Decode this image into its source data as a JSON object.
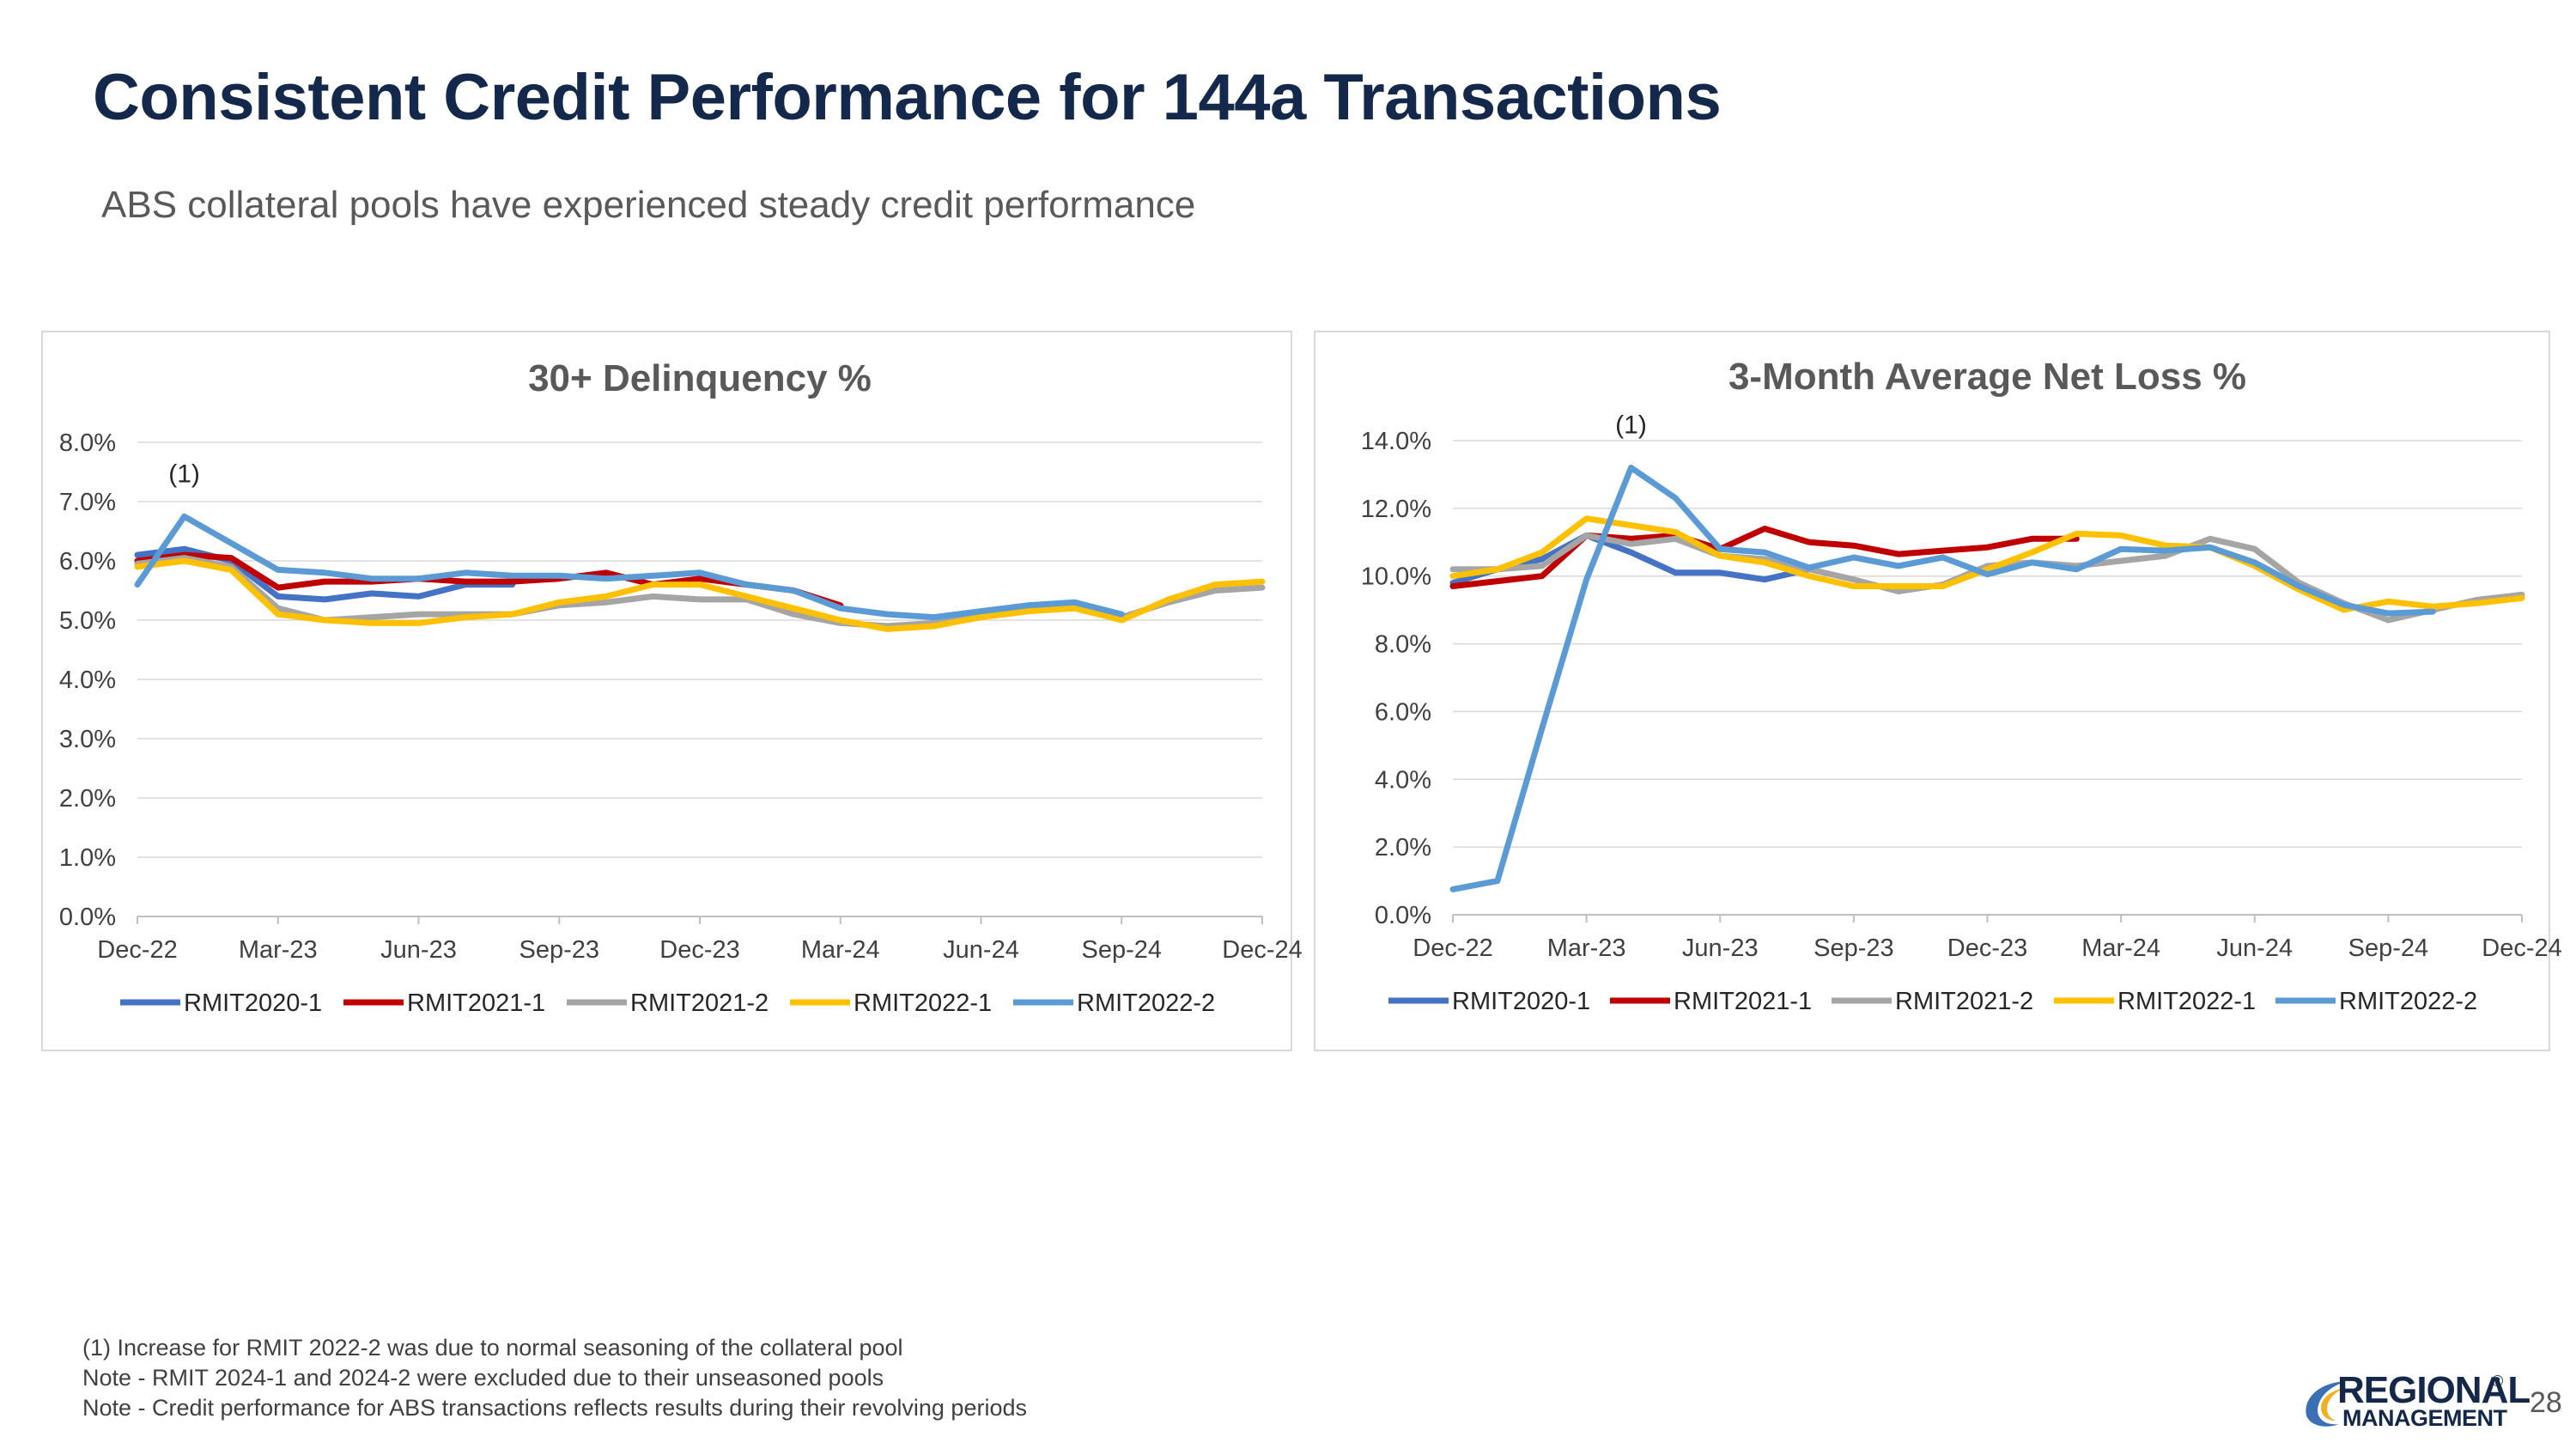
{
  "header": {
    "title": "Consistent Credit Performance for 144a Transactions",
    "subtitle": "ABS collateral pools have experienced steady credit performance"
  },
  "series_colors": {
    "RMIT2020-1": "#4472c4",
    "RMIT2021-1": "#c00000",
    "RMIT2021-2": "#a5a5a5",
    "RMIT2022-1": "#ffc000",
    "RMIT2022-2": "#5b9bd5"
  },
  "chart_data": [
    {
      "type": "line",
      "title": "30+ Delinquency %",
      "xlabel": "",
      "ylabel": "",
      "ylim": [
        0,
        8
      ],
      "y_ticks": [
        "0.0%",
        "1.0%",
        "2.0%",
        "3.0%",
        "4.0%",
        "5.0%",
        "6.0%",
        "7.0%",
        "8.0%"
      ],
      "x_tick_labels": [
        "Dec-22",
        "Mar-23",
        "Jun-23",
        "Sep-23",
        "Dec-23",
        "Mar-24",
        "Jun-24",
        "Sep-24",
        "Dec-24"
      ],
      "annotation": {
        "text": "(1)",
        "x_index": 1
      },
      "legend": "bottom",
      "grid": true,
      "series": [
        {
          "name": "RMIT2020-1",
          "values": [
            6.1,
            6.2,
            6.0,
            5.4,
            5.35,
            5.45,
            5.4,
            5.6,
            5.6
          ]
        },
        {
          "name": "RMIT2021-1",
          "values": [
            6.0,
            6.1,
            6.05,
            5.55,
            5.65,
            5.65,
            5.7,
            5.65,
            5.65,
            5.7,
            5.8,
            5.6,
            5.7,
            5.6,
            5.5,
            5.25
          ]
        },
        {
          "name": "RMIT2021-2",
          "values": [
            5.95,
            6.05,
            5.9,
            5.2,
            5.0,
            5.05,
            5.1,
            5.1,
            5.1,
            5.25,
            5.3,
            5.4,
            5.35,
            5.35,
            5.1,
            4.95,
            4.9,
            4.95,
            5.1,
            5.2,
            5.2,
            5.05,
            5.3,
            5.5,
            5.55
          ]
        },
        {
          "name": "RMIT2022-1",
          "values": [
            5.9,
            6.0,
            5.85,
            5.1,
            5.0,
            4.95,
            4.95,
            5.05,
            5.1,
            5.3,
            5.4,
            5.6,
            5.6,
            5.4,
            5.2,
            5.0,
            4.85,
            4.9,
            5.05,
            5.15,
            5.2,
            5.0,
            5.35,
            5.6,
            5.65
          ]
        },
        {
          "name": "RMIT2022-2",
          "values": [
            5.6,
            6.75,
            6.3,
            5.85,
            5.8,
            5.7,
            5.7,
            5.8,
            5.75,
            5.75,
            5.7,
            5.75,
            5.8,
            5.6,
            5.5,
            5.2,
            5.1,
            5.05,
            5.15,
            5.25,
            5.3,
            5.1
          ]
        }
      ]
    },
    {
      "type": "line",
      "title": "3-Month Average Net Loss %",
      "xlabel": "",
      "ylabel": "",
      "ylim": [
        0,
        14
      ],
      "y_ticks": [
        "0.0%",
        "2.0%",
        "4.0%",
        "6.0%",
        "8.0%",
        "10.0%",
        "12.0%",
        "14.0%"
      ],
      "x_tick_labels": [
        "Dec-22",
        "Mar-23",
        "Jun-23",
        "Sep-23",
        "Dec-23",
        "Mar-24",
        "Jun-24",
        "Sep-24",
        "Dec-24"
      ],
      "annotation": {
        "text": "(1)",
        "x_index": 4
      },
      "legend": "bottom",
      "grid": true,
      "series": [
        {
          "name": "RMIT2020-1",
          "values": [
            9.8,
            10.2,
            10.5,
            11.2,
            10.7,
            10.1,
            10.1,
            9.9,
            10.2
          ]
        },
        {
          "name": "RMIT2021-1",
          "values": [
            9.7,
            9.85,
            10.0,
            11.2,
            11.1,
            11.2,
            10.8,
            11.4,
            11.0,
            10.9,
            10.65,
            10.75,
            10.85,
            11.1,
            11.1
          ]
        },
        {
          "name": "RMIT2021-2",
          "values": [
            10.2,
            10.2,
            10.3,
            11.2,
            10.95,
            11.1,
            10.6,
            10.5,
            10.2,
            9.9,
            9.55,
            9.75,
            10.3,
            10.4,
            10.3,
            10.45,
            10.6,
            11.1,
            10.8,
            9.8,
            9.2,
            8.7,
            9.0,
            9.3,
            9.45
          ]
        },
        {
          "name": "RMIT2022-1",
          "values": [
            10.0,
            10.2,
            10.7,
            11.7,
            11.5,
            11.3,
            10.6,
            10.4,
            10.0,
            9.7,
            9.7,
            9.7,
            10.2,
            10.7,
            11.25,
            11.2,
            10.9,
            10.85,
            10.3,
            9.6,
            9.0,
            9.25,
            9.1,
            9.2,
            9.35
          ]
        },
        {
          "name": "RMIT2022-2",
          "values": [
            0.75,
            1.0,
            5.5,
            9.9,
            13.2,
            12.3,
            10.8,
            10.7,
            10.25,
            10.55,
            10.3,
            10.55,
            10.05,
            10.4,
            10.2,
            10.8,
            10.75,
            10.85,
            10.4,
            9.7,
            9.15,
            8.9,
            8.95
          ]
        }
      ]
    }
  ],
  "footnotes": [
    "(1)  Increase for RMIT 2022-2 was due to normal seasoning of the collateral pool",
    "Note - RMIT 2024-1 and 2024-2 were excluded due to their unseasoned pools",
    "Note - Credit performance for ABS transactions reflects results during their revolving periods"
  ],
  "logo": {
    "line1": "REGIONAL",
    "line2": "MANAGEMENT",
    "mark": "®"
  },
  "page_number": "28"
}
